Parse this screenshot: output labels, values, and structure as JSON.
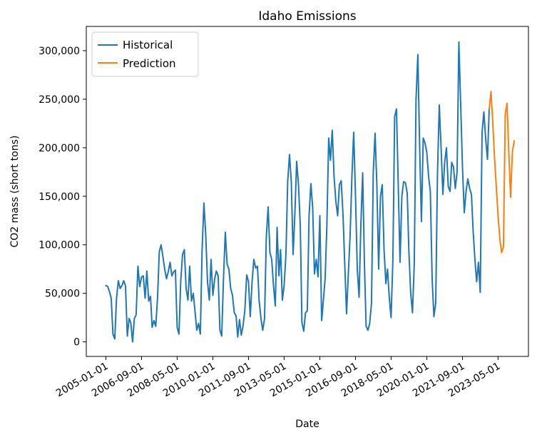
{
  "chart_data": {
    "type": "line",
    "title": "Idaho Emissions",
    "xlabel": "Date",
    "ylabel": "CO2 mass (short tons)",
    "ylim": [
      -15000,
      325000
    ],
    "xlim": [
      "2004-02-01",
      "2024-10-01"
    ],
    "x_ticks": [
      "2005-01-01",
      "2006-09-01",
      "2008-05-01",
      "2010-01-01",
      "2011-09-01",
      "2013-05-01",
      "2015-01-01",
      "2016-09-01",
      "2018-05-01",
      "2020-01-01",
      "2021-09-01",
      "2023-05-01"
    ],
    "y_ticks": [
      0,
      50000,
      100000,
      150000,
      200000,
      250000,
      300000
    ],
    "y_tick_labels": [
      "0",
      "50,000",
      "100,000",
      "150,000",
      "200,000",
      "250,000",
      "300,000"
    ],
    "grid": false,
    "legend_position": "top-left",
    "series": [
      {
        "name": "Historical",
        "color": "#1f77b4",
        "points": [
          [
            "2005-01-01",
            58000
          ],
          [
            "2005-02-01",
            57000
          ],
          [
            "2005-03-01",
            52000
          ],
          [
            "2005-04-01",
            45000
          ],
          [
            "2005-05-01",
            8000
          ],
          [
            "2005-06-01",
            3000
          ],
          [
            "2005-07-01",
            45000
          ],
          [
            "2005-08-01",
            63000
          ],
          [
            "2005-09-01",
            55000
          ],
          [
            "2005-10-01",
            58000
          ],
          [
            "2005-11-01",
            63000
          ],
          [
            "2005-12-01",
            58000
          ],
          [
            "2006-01-01",
            6000
          ],
          [
            "2006-02-01",
            24000
          ],
          [
            "2006-03-01",
            20000
          ],
          [
            "2006-04-01",
            0
          ],
          [
            "2006-05-01",
            24000
          ],
          [
            "2006-06-01",
            28000
          ],
          [
            "2006-07-01",
            78000
          ],
          [
            "2006-08-01",
            57000
          ],
          [
            "2006-09-01",
            67000
          ],
          [
            "2006-10-01",
            68000
          ],
          [
            "2006-11-01",
            45000
          ],
          [
            "2006-12-01",
            73000
          ],
          [
            "2007-01-01",
            42000
          ],
          [
            "2007-02-01",
            47000
          ],
          [
            "2007-03-01",
            15000
          ],
          [
            "2007-04-01",
            22000
          ],
          [
            "2007-05-01",
            16000
          ],
          [
            "2007-06-01",
            45000
          ],
          [
            "2007-07-01",
            93000
          ],
          [
            "2007-08-01",
            100000
          ],
          [
            "2007-09-01",
            88000
          ],
          [
            "2007-10-01",
            75000
          ],
          [
            "2007-11-01",
            65000
          ],
          [
            "2007-12-01",
            72000
          ],
          [
            "2008-01-01",
            82000
          ],
          [
            "2008-02-01",
            68000
          ],
          [
            "2008-03-01",
            72000
          ],
          [
            "2008-04-01",
            74000
          ],
          [
            "2008-05-01",
            15000
          ],
          [
            "2008-06-01",
            8000
          ],
          [
            "2008-07-01",
            62000
          ],
          [
            "2008-08-01",
            90000
          ],
          [
            "2008-09-01",
            95000
          ],
          [
            "2008-10-01",
            55000
          ],
          [
            "2008-11-01",
            43000
          ],
          [
            "2008-12-01",
            78000
          ],
          [
            "2009-01-01",
            42000
          ],
          [
            "2009-02-01",
            50000
          ],
          [
            "2009-03-01",
            32000
          ],
          [
            "2009-04-01",
            12000
          ],
          [
            "2009-05-01",
            19000
          ],
          [
            "2009-06-01",
            8000
          ],
          [
            "2009-07-01",
            95000
          ],
          [
            "2009-08-01",
            143000
          ],
          [
            "2009-09-01",
            110000
          ],
          [
            "2009-10-01",
            62000
          ],
          [
            "2009-11-01",
            43000
          ],
          [
            "2009-12-01",
            85000
          ],
          [
            "2010-01-01",
            48000
          ],
          [
            "2010-02-01",
            65000
          ],
          [
            "2010-03-01",
            73000
          ],
          [
            "2010-04-01",
            68000
          ],
          [
            "2010-05-01",
            12000
          ],
          [
            "2010-06-01",
            6000
          ],
          [
            "2010-07-01",
            65000
          ],
          [
            "2010-08-01",
            113000
          ],
          [
            "2010-09-01",
            80000
          ],
          [
            "2010-10-01",
            75000
          ],
          [
            "2010-11-01",
            55000
          ],
          [
            "2010-12-01",
            48000
          ],
          [
            "2011-01-01",
            30000
          ],
          [
            "2011-02-01",
            27000
          ],
          [
            "2011-03-01",
            5000
          ],
          [
            "2011-04-01",
            23000
          ],
          [
            "2011-05-01",
            7000
          ],
          [
            "2011-06-01",
            17000
          ],
          [
            "2011-07-01",
            33000
          ],
          [
            "2011-08-01",
            69000
          ],
          [
            "2011-09-01",
            62000
          ],
          [
            "2011-10-01",
            26000
          ],
          [
            "2011-11-01",
            62000
          ],
          [
            "2011-12-01",
            85000
          ],
          [
            "2012-01-01",
            76000
          ],
          [
            "2012-02-01",
            78000
          ],
          [
            "2012-03-01",
            42000
          ],
          [
            "2012-04-01",
            24000
          ],
          [
            "2012-05-01",
            12000
          ],
          [
            "2012-06-01",
            24000
          ],
          [
            "2012-07-01",
            108000
          ],
          [
            "2012-08-01",
            139000
          ],
          [
            "2012-09-01",
            92000
          ],
          [
            "2012-10-01",
            85000
          ],
          [
            "2012-11-01",
            58000
          ],
          [
            "2012-12-01",
            37000
          ],
          [
            "2013-01-01",
            118000
          ],
          [
            "2013-02-01",
            68000
          ],
          [
            "2013-03-01",
            95000
          ],
          [
            "2013-04-01",
            43000
          ],
          [
            "2013-05-01",
            58000
          ],
          [
            "2013-06-01",
            90000
          ],
          [
            "2013-07-01",
            165000
          ],
          [
            "2013-08-01",
            193000
          ],
          [
            "2013-09-01",
            165000
          ],
          [
            "2013-10-01",
            90000
          ],
          [
            "2013-11-01",
            132000
          ],
          [
            "2013-12-01",
            186000
          ],
          [
            "2014-01-01",
            162000
          ],
          [
            "2014-02-01",
            120000
          ],
          [
            "2014-03-01",
            20000
          ],
          [
            "2014-04-01",
            11000
          ],
          [
            "2014-05-01",
            30000
          ],
          [
            "2014-06-01",
            32000
          ],
          [
            "2014-07-01",
            130000
          ],
          [
            "2014-08-01",
            163000
          ],
          [
            "2014-09-01",
            138000
          ],
          [
            "2014-10-01",
            70000
          ],
          [
            "2014-11-01",
            85000
          ],
          [
            "2014-12-01",
            67000
          ],
          [
            "2015-01-01",
            130000
          ],
          [
            "2015-02-01",
            22000
          ],
          [
            "2015-03-01",
            42000
          ],
          [
            "2015-04-01",
            65000
          ],
          [
            "2015-05-01",
            120000
          ],
          [
            "2015-06-01",
            210000
          ],
          [
            "2015-07-01",
            187000
          ],
          [
            "2015-08-01",
            218000
          ],
          [
            "2015-09-01",
            170000
          ],
          [
            "2015-10-01",
            145000
          ],
          [
            "2015-11-01",
            130000
          ],
          [
            "2015-12-01",
            162000
          ],
          [
            "2016-01-01",
            166000
          ],
          [
            "2016-02-01",
            130000
          ],
          [
            "2016-03-01",
            80000
          ],
          [
            "2016-04-01",
            29000
          ],
          [
            "2016-05-01",
            70000
          ],
          [
            "2016-06-01",
            110000
          ],
          [
            "2016-07-01",
            170000
          ],
          [
            "2016-08-01",
            216000
          ],
          [
            "2016-09-01",
            150000
          ],
          [
            "2016-10-01",
            75000
          ],
          [
            "2016-11-01",
            46000
          ],
          [
            "2016-12-01",
            120000
          ],
          [
            "2017-01-01",
            174000
          ],
          [
            "2017-02-01",
            78000
          ],
          [
            "2017-03-01",
            16000
          ],
          [
            "2017-04-01",
            12000
          ],
          [
            "2017-05-01",
            19000
          ],
          [
            "2017-06-01",
            40000
          ],
          [
            "2017-07-01",
            175000
          ],
          [
            "2017-08-01",
            215000
          ],
          [
            "2017-09-01",
            160000
          ],
          [
            "2017-10-01",
            75000
          ],
          [
            "2017-11-01",
            150000
          ],
          [
            "2017-12-01",
            162000
          ],
          [
            "2018-01-01",
            95000
          ],
          [
            "2018-02-01",
            60000
          ],
          [
            "2018-03-01",
            75000
          ],
          [
            "2018-04-01",
            45000
          ],
          [
            "2018-05-01",
            25000
          ],
          [
            "2018-06-01",
            85000
          ],
          [
            "2018-07-01",
            232000
          ],
          [
            "2018-08-01",
            240000
          ],
          [
            "2018-09-01",
            160000
          ],
          [
            "2018-10-01",
            82000
          ],
          [
            "2018-11-01",
            150000
          ],
          [
            "2018-12-01",
            165000
          ],
          [
            "2019-01-01",
            164000
          ],
          [
            "2019-02-01",
            153000
          ],
          [
            "2019-03-01",
            93000
          ],
          [
            "2019-04-01",
            50000
          ],
          [
            "2019-05-01",
            30000
          ],
          [
            "2019-06-01",
            80000
          ],
          [
            "2019-07-01",
            250000
          ],
          [
            "2019-08-01",
            296000
          ],
          [
            "2019-09-01",
            200000
          ],
          [
            "2019-10-01",
            124000
          ],
          [
            "2019-11-01",
            210000
          ],
          [
            "2019-12-01",
            205000
          ],
          [
            "2020-01-01",
            195000
          ],
          [
            "2020-02-01",
            170000
          ],
          [
            "2020-03-01",
            155000
          ],
          [
            "2020-04-01",
            65000
          ],
          [
            "2020-05-01",
            26000
          ],
          [
            "2020-06-01",
            40000
          ],
          [
            "2020-07-01",
            173000
          ],
          [
            "2020-08-01",
            244000
          ],
          [
            "2020-09-01",
            200000
          ],
          [
            "2020-10-01",
            152000
          ],
          [
            "2020-11-01",
            185000
          ],
          [
            "2020-12-01",
            200000
          ],
          [
            "2021-01-01",
            160000
          ],
          [
            "2021-02-01",
            155000
          ],
          [
            "2021-03-01",
            185000
          ],
          [
            "2021-04-01",
            180000
          ],
          [
            "2021-05-01",
            158000
          ],
          [
            "2021-06-01",
            175000
          ],
          [
            "2021-07-01",
            309000
          ],
          [
            "2021-08-01",
            245000
          ],
          [
            "2021-09-01",
            180000
          ],
          [
            "2021-10-01",
            133000
          ],
          [
            "2021-11-01",
            155000
          ],
          [
            "2021-12-01",
            168000
          ],
          [
            "2022-01-01",
            158000
          ],
          [
            "2022-02-01",
            152000
          ],
          [
            "2022-03-01",
            115000
          ],
          [
            "2022-04-01",
            85000
          ],
          [
            "2022-05-01",
            62000
          ],
          [
            "2022-06-01",
            82000
          ],
          [
            "2022-07-01",
            51000
          ],
          [
            "2022-08-01",
            215000
          ],
          [
            "2022-09-01",
            237000
          ],
          [
            "2022-10-01",
            210000
          ],
          [
            "2022-11-01",
            188000
          ],
          [
            "2022-12-01",
            240000
          ]
        ]
      },
      {
        "name": "Prediction",
        "color": "#ff7f0e",
        "points": [
          [
            "2022-12-01",
            240000
          ],
          [
            "2023-01-01",
            258000
          ],
          [
            "2023-02-01",
            225000
          ],
          [
            "2023-03-01",
            190000
          ],
          [
            "2023-04-01",
            160000
          ],
          [
            "2023-05-01",
            130000
          ],
          [
            "2023-06-01",
            106000
          ],
          [
            "2023-07-01",
            92000
          ],
          [
            "2023-08-01",
            98000
          ],
          [
            "2023-09-01",
            235000
          ],
          [
            "2023-10-01",
            246000
          ],
          [
            "2023-11-01",
            195000
          ],
          [
            "2023-12-01",
            149000
          ],
          [
            "2024-01-01",
            196000
          ],
          [
            "2024-02-01",
            207000
          ]
        ]
      }
    ]
  }
}
